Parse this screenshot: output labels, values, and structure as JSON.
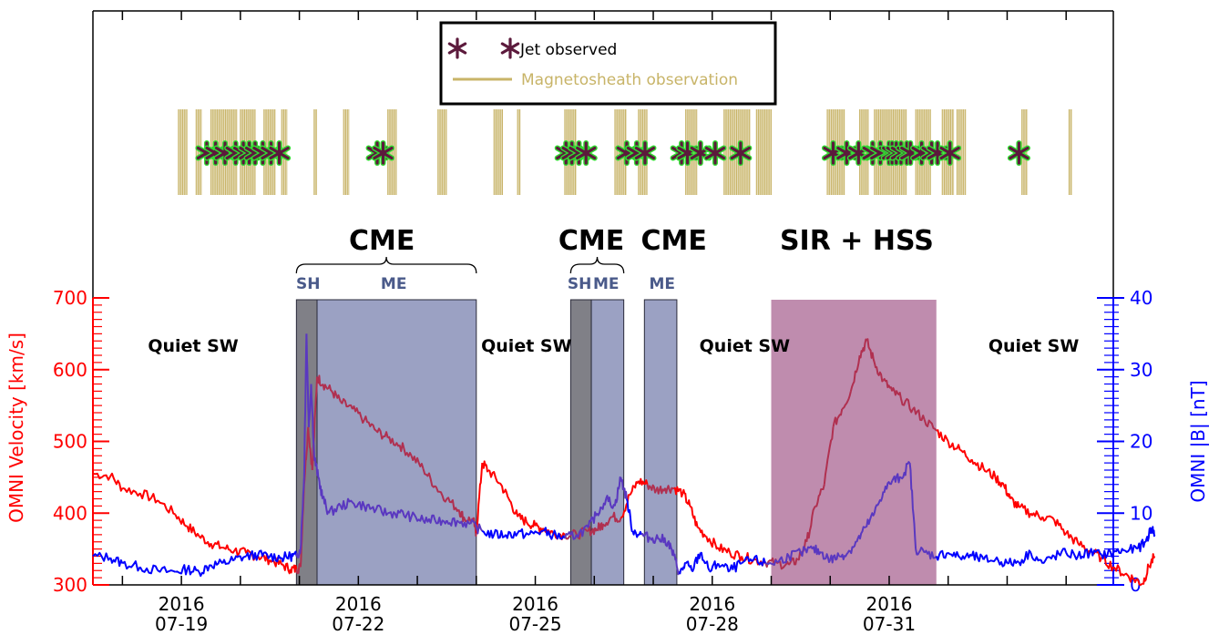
{
  "colors": {
    "velocity": "#ff0000",
    "velocity_in_event": "#b03050",
    "field": "#0000ff",
    "field_in_event": "#5a38c0",
    "magnetosheath": "#c8b468",
    "jet": "#5c1a3c",
    "jet_outline": "#33dd33",
    "sheath_fill": "#6a6a72",
    "ejecta_fill": "#8a90b8",
    "sir_fill": "#b478a0"
  },
  "chart_data": {
    "type": "line",
    "x_axis": {
      "range_days": [
        17.5,
        34.8
      ],
      "ticks": [
        {
          "day": 19,
          "label": [
            "2016",
            "07-19"
          ]
        },
        {
          "day": 22,
          "label": [
            "2016",
            "07-22"
          ]
        },
        {
          "day": 25,
          "label": [
            "2016",
            "07-25"
          ]
        },
        {
          "day": 28,
          "label": [
            "2016",
            "07-28"
          ]
        },
        {
          "day": 31,
          "label": [
            "2016",
            "07-31"
          ]
        }
      ]
    },
    "left_axis": {
      "label": "OMNI Velocity [km/s]",
      "range": [
        300,
        700
      ],
      "ticks": [
        "300",
        "400",
        "500",
        "600",
        "700"
      ]
    },
    "right_axis": {
      "label": "OMNI |B| [nT]",
      "range": [
        0,
        40
      ],
      "ticks": [
        "0",
        "10",
        "20",
        "30",
        "40"
      ]
    },
    "series": [
      {
        "key": "velocity",
        "points": [
          [
            17.5,
            455
          ],
          [
            17.8,
            452
          ],
          [
            18.0,
            435
          ],
          [
            18.3,
            428
          ],
          [
            18.6,
            418
          ],
          [
            18.9,
            398
          ],
          [
            19.1,
            382
          ],
          [
            19.3,
            368
          ],
          [
            19.5,
            358
          ],
          [
            19.7,
            352
          ],
          [
            19.9,
            348
          ],
          [
            20.1,
            344
          ],
          [
            20.3,
            340
          ],
          [
            20.5,
            335
          ],
          [
            20.7,
            328
          ],
          [
            20.85,
            322
          ],
          [
            20.95,
            322
          ],
          [
            21.02,
            325
          ],
          [
            21.08,
            440
          ],
          [
            21.15,
            520
          ],
          [
            21.22,
            460
          ],
          [
            21.3,
            590
          ],
          [
            21.4,
            580
          ],
          [
            21.55,
            570
          ],
          [
            21.7,
            555
          ],
          [
            21.9,
            545
          ],
          [
            22.1,
            530
          ],
          [
            22.3,
            515
          ],
          [
            22.5,
            505
          ],
          [
            22.7,
            495
          ],
          [
            22.9,
            480
          ],
          [
            23.1,
            462
          ],
          [
            23.3,
            438
          ],
          [
            23.5,
            420
          ],
          [
            23.7,
            405
          ],
          [
            23.8,
            392
          ],
          [
            23.95,
            390
          ],
          [
            24.0,
            372
          ],
          [
            24.1,
            470
          ],
          [
            24.2,
            460
          ],
          [
            24.4,
            442
          ],
          [
            24.55,
            420
          ],
          [
            24.7,
            395
          ],
          [
            24.85,
            388
          ],
          [
            25.0,
            382
          ],
          [
            25.15,
            378
          ],
          [
            25.3,
            372
          ],
          [
            25.5,
            370
          ],
          [
            25.7,
            370
          ],
          [
            25.9,
            375
          ],
          [
            26.05,
            378
          ],
          [
            26.15,
            385
          ],
          [
            26.3,
            395
          ],
          [
            26.45,
            393
          ],
          [
            26.6,
            425
          ],
          [
            26.75,
            445
          ],
          [
            26.9,
            440
          ],
          [
            27.05,
            432
          ],
          [
            27.2,
            435
          ],
          [
            27.35,
            435
          ],
          [
            27.5,
            428
          ],
          [
            27.62,
            410
          ],
          [
            27.75,
            380
          ],
          [
            27.9,
            368
          ],
          [
            28.1,
            352
          ],
          [
            28.3,
            345
          ],
          [
            28.5,
            340
          ],
          [
            28.7,
            335
          ],
          [
            28.9,
            332
          ],
          [
            29.1,
            330
          ],
          [
            29.3,
            328
          ],
          [
            29.45,
            335
          ],
          [
            29.6,
            360
          ],
          [
            29.75,
            410
          ],
          [
            29.9,
            440
          ],
          [
            30.05,
            520
          ],
          [
            30.2,
            545
          ],
          [
            30.35,
            570
          ],
          [
            30.5,
            620
          ],
          [
            30.62,
            640
          ],
          [
            30.75,
            610
          ],
          [
            30.9,
            585
          ],
          [
            31.05,
            570
          ],
          [
            31.2,
            560
          ],
          [
            31.4,
            545
          ],
          [
            31.6,
            530
          ],
          [
            31.8,
            515
          ],
          [
            32.0,
            500
          ],
          [
            32.2,
            488
          ],
          [
            32.4,
            475
          ],
          [
            32.6,
            462
          ],
          [
            32.8,
            450
          ],
          [
            32.95,
            438
          ],
          [
            33.05,
            420
          ],
          [
            33.2,
            408
          ],
          [
            33.4,
            400
          ],
          [
            33.6,
            395
          ],
          [
            33.8,
            390
          ],
          [
            34.0,
            372
          ],
          [
            34.2,
            358
          ],
          [
            34.4,
            348
          ],
          [
            34.6,
            338
          ],
          [
            34.8,
            325
          ],
          [
            35.0,
            315
          ],
          [
            35.15,
            308
          ],
          [
            35.3,
            302
          ],
          [
            35.4,
            325
          ],
          [
            35.5,
            340
          ]
        ]
      },
      {
        "key": "field",
        "points": [
          [
            17.5,
            4.0
          ],
          [
            17.8,
            3.8
          ],
          [
            18.0,
            3.0
          ],
          [
            18.3,
            2.5
          ],
          [
            18.6,
            2.0
          ],
          [
            18.9,
            1.8
          ],
          [
            19.1,
            2.2
          ],
          [
            19.3,
            1.8
          ],
          [
            19.5,
            2.8
          ],
          [
            19.7,
            3.0
          ],
          [
            19.9,
            3.5
          ],
          [
            20.1,
            4.0
          ],
          [
            20.3,
            4.2
          ],
          [
            20.5,
            4.0
          ],
          [
            20.7,
            3.8
          ],
          [
            20.85,
            4.0
          ],
          [
            20.95,
            4.0
          ],
          [
            21.02,
            5.0
          ],
          [
            21.08,
            15.0
          ],
          [
            21.12,
            35.0
          ],
          [
            21.16,
            22.0
          ],
          [
            21.2,
            28.0
          ],
          [
            21.25,
            18.0
          ],
          [
            21.32,
            15.0
          ],
          [
            21.4,
            12.0
          ],
          [
            21.5,
            10.0
          ],
          [
            21.7,
            11.0
          ],
          [
            21.9,
            11.5
          ],
          [
            22.1,
            11.0
          ],
          [
            22.3,
            10.5
          ],
          [
            22.5,
            10.0
          ],
          [
            22.7,
            10.0
          ],
          [
            22.9,
            9.5
          ],
          [
            23.1,
            9.0
          ],
          [
            23.3,
            9.0
          ],
          [
            23.5,
            9.0
          ],
          [
            23.7,
            8.8
          ],
          [
            23.9,
            8.5
          ],
          [
            24.1,
            7.5
          ],
          [
            24.3,
            7.0
          ],
          [
            24.5,
            7.0
          ],
          [
            24.7,
            7.2
          ],
          [
            24.9,
            7.0
          ],
          [
            25.1,
            7.5
          ],
          [
            25.3,
            7.0
          ],
          [
            25.5,
            6.5
          ],
          [
            25.7,
            7.0
          ],
          [
            25.9,
            8.0
          ],
          [
            26.05,
            10.0
          ],
          [
            26.2,
            12.0
          ],
          [
            26.35,
            11.0
          ],
          [
            26.45,
            15.0
          ],
          [
            26.55,
            12.0
          ],
          [
            26.65,
            7.5
          ],
          [
            26.8,
            7.0
          ],
          [
            26.95,
            6.5
          ],
          [
            27.1,
            6.5
          ],
          [
            27.25,
            6.0
          ],
          [
            27.35,
            4.0
          ],
          [
            27.45,
            1.5
          ],
          [
            27.55,
            3.0
          ],
          [
            27.65,
            2.0
          ],
          [
            27.8,
            4.5
          ],
          [
            27.95,
            2.0
          ],
          [
            28.1,
            3.0
          ],
          [
            28.3,
            2.0
          ],
          [
            28.5,
            3.0
          ],
          [
            28.7,
            3.5
          ],
          [
            28.9,
            3.0
          ],
          [
            29.1,
            3.2
          ],
          [
            29.3,
            4.0
          ],
          [
            29.5,
            4.5
          ],
          [
            29.7,
            5.0
          ],
          [
            29.85,
            4.5
          ],
          [
            30.0,
            3.5
          ],
          [
            30.15,
            4.0
          ],
          [
            30.3,
            4.5
          ],
          [
            30.45,
            6.0
          ],
          [
            30.6,
            8.0
          ],
          [
            30.75,
            10.0
          ],
          [
            30.9,
            13.0
          ],
          [
            31.05,
            14.5
          ],
          [
            31.2,
            15.0
          ],
          [
            31.35,
            17.0
          ],
          [
            31.45,
            5.0
          ],
          [
            31.6,
            4.5
          ],
          [
            31.8,
            4.0
          ],
          [
            32.0,
            4.5
          ],
          [
            32.2,
            3.8
          ],
          [
            32.4,
            4.0
          ],
          [
            32.6,
            3.5
          ],
          [
            32.8,
            3.5
          ],
          [
            33.0,
            3.0
          ],
          [
            33.2,
            3.2
          ],
          [
            33.4,
            4.5
          ],
          [
            33.6,
            3.0
          ],
          [
            33.8,
            4.0
          ],
          [
            34.0,
            4.5
          ],
          [
            34.2,
            4.0
          ],
          [
            34.4,
            4.5
          ],
          [
            34.6,
            4.2
          ],
          [
            34.8,
            4.5
          ],
          [
            35.0,
            4.8
          ],
          [
            35.2,
            5.0
          ],
          [
            35.35,
            6.0
          ],
          [
            35.45,
            8.0
          ],
          [
            35.5,
            7.0
          ]
        ]
      }
    ],
    "shaded_regions": [
      {
        "kind": "sheath",
        "from": 20.95,
        "to": 21.3
      },
      {
        "kind": "ejecta",
        "from": 21.3,
        "to": 24.0
      },
      {
        "kind": "sheath",
        "from": 25.6,
        "to": 25.95
      },
      {
        "kind": "ejecta",
        "from": 25.95,
        "to": 26.5
      },
      {
        "kind": "ejecta",
        "from": 26.85,
        "to": 27.4
      },
      {
        "kind": "sir",
        "from": 29.0,
        "to": 31.8
      }
    ],
    "region_labels": [
      {
        "text": "CME",
        "day": 22.4
      },
      {
        "text": "CME",
        "day": 25.95
      },
      {
        "text": "CME",
        "day": 27.35
      },
      {
        "text": "SIR + HSS",
        "day": 30.45
      }
    ],
    "sub_labels": [
      {
        "text": "SH",
        "day": 21.15
      },
      {
        "text": "ME",
        "day": 22.6
      },
      {
        "text": "SH",
        "day": 25.75
      },
      {
        "text": "ME",
        "day": 26.2
      },
      {
        "text": "ME",
        "day": 27.15
      }
    ],
    "quiet_labels": [
      {
        "text": "Quiet SW",
        "day": 19.2
      },
      {
        "text": "Quiet SW",
        "day": 24.85
      },
      {
        "text": "Quiet SW",
        "day": 28.55
      },
      {
        "text": "Quiet SW",
        "day": 33.45
      }
    ],
    "brace_spans": [
      [
        20.95,
        24.0
      ],
      [
        25.6,
        26.5
      ]
    ],
    "magnetosheath_intervals": [
      [
        18.95,
        19.1
      ],
      [
        19.25,
        19.35
      ],
      [
        19.5,
        19.95
      ],
      [
        20.0,
        20.25
      ],
      [
        20.4,
        20.6
      ],
      [
        20.7,
        20.8
      ],
      [
        21.25,
        21.3
      ],
      [
        21.75,
        21.85
      ],
      [
        22.5,
        22.65
      ],
      [
        23.35,
        23.5
      ],
      [
        24.3,
        24.45
      ],
      [
        24.7,
        24.75
      ],
      [
        25.5,
        25.7
      ],
      [
        26.35,
        26.55
      ],
      [
        26.75,
        26.9
      ],
      [
        27.55,
        27.75
      ],
      [
        28.2,
        28.65
      ],
      [
        28.75,
        29.0
      ],
      [
        29.95,
        30.25
      ],
      [
        30.5,
        30.65
      ],
      [
        30.75,
        31.3
      ],
      [
        31.45,
        31.7
      ],
      [
        31.9,
        32.1
      ],
      [
        32.15,
        32.3
      ],
      [
        33.25,
        33.35
      ],
      [
        34.05,
        34.1
      ]
    ],
    "jets": [
      19.43,
      19.58,
      19.74,
      19.92,
      20.05,
      20.15,
      20.25,
      20.38,
      20.52,
      20.66,
      22.32,
      22.42,
      25.52,
      25.62,
      25.74,
      25.86,
      26.55,
      26.72,
      26.86,
      27.48,
      27.58,
      27.8,
      28.05,
      28.48,
      30.05,
      30.28,
      30.48,
      30.72,
      30.85,
      31.0,
      31.05,
      31.12,
      31.2,
      31.3,
      31.36,
      31.55,
      31.72,
      31.82,
      32.03,
      33.2
    ],
    "legend": [
      {
        "key": "jet",
        "label": "Jet observed"
      },
      {
        "key": "magnetosheath",
        "label": "Magnetosheath observation"
      }
    ]
  }
}
